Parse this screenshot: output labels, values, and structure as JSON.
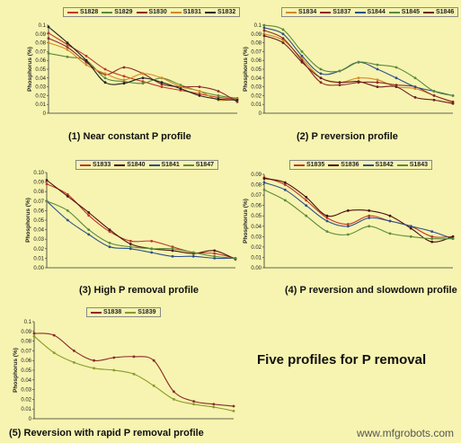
{
  "title": "Five profiles for P removal",
  "watermark": "www.mfgrobots.com",
  "chart_data": [
    {
      "type": "line",
      "title": "(1) Near constant P profile",
      "ylabel": "Phosphorus (%)",
      "ylim": [
        0,
        0.1
      ],
      "yticks": [
        "0",
        "0.01",
        "0.02",
        "0.03",
        "0.04",
        "0.05",
        "0.06",
        "0.07",
        "0.08",
        "0.09",
        "0.1"
      ],
      "series": [
        {
          "name": "S1828",
          "color": "#c0392b",
          "points": [
            [
              0,
              0.091
            ],
            [
              1,
              0.078
            ],
            [
              2,
              0.065
            ],
            [
              3,
              0.05
            ],
            [
              4,
              0.042
            ],
            [
              5,
              0.036
            ],
            [
              6,
              0.03
            ],
            [
              7,
              0.026
            ],
            [
              8,
              0.022
            ],
            [
              9,
              0.018
            ],
            [
              10,
              0.016
            ]
          ]
        },
        {
          "name": "S1829",
          "color": "#5d8a3a",
          "points": [
            [
              0,
              0.068
            ],
            [
              1,
              0.064
            ],
            [
              2,
              0.06
            ],
            [
              3,
              0.04
            ],
            [
              4,
              0.036
            ],
            [
              5,
              0.034
            ],
            [
              6,
              0.04
            ],
            [
              7,
              0.032
            ],
            [
              8,
              0.025
            ],
            [
              9,
              0.02
            ],
            [
              10,
              0.017
            ]
          ]
        },
        {
          "name": "S1830",
          "color": "#8b2a2a",
          "points": [
            [
              0,
              0.085
            ],
            [
              1,
              0.075
            ],
            [
              2,
              0.058
            ],
            [
              3,
              0.044
            ],
            [
              4,
              0.052
            ],
            [
              5,
              0.045
            ],
            [
              6,
              0.033
            ],
            [
              7,
              0.03
            ],
            [
              8,
              0.03
            ],
            [
              9,
              0.025
            ],
            [
              10,
              0.013
            ]
          ]
        },
        {
          "name": "S1831",
          "color": "#d4882a",
          "points": [
            [
              0,
              0.08
            ],
            [
              1,
              0.072
            ],
            [
              2,
              0.055
            ],
            [
              3,
              0.045
            ],
            [
              4,
              0.038
            ],
            [
              5,
              0.045
            ],
            [
              6,
              0.04
            ],
            [
              7,
              0.03
            ],
            [
              8,
              0.025
            ],
            [
              9,
              0.015
            ],
            [
              10,
              0.016
            ]
          ]
        },
        {
          "name": "S1832",
          "color": "#222222",
          "points": [
            [
              0,
              0.098
            ],
            [
              1,
              0.08
            ],
            [
              2,
              0.06
            ],
            [
              3,
              0.035
            ],
            [
              4,
              0.034
            ],
            [
              5,
              0.04
            ],
            [
              6,
              0.035
            ],
            [
              7,
              0.028
            ],
            [
              8,
              0.02
            ],
            [
              9,
              0.016
            ],
            [
              10,
              0.015
            ]
          ]
        }
      ]
    },
    {
      "type": "line",
      "title": "(2) P reversion profile",
      "ylabel": "Phosphorus (%)",
      "ylim": [
        0,
        0.1
      ],
      "yticks": [
        "0",
        "0.01",
        "0.02",
        "0.03",
        "0.04",
        "0.05",
        "0.06",
        "0.07",
        "0.08",
        "0.09",
        "0.1"
      ],
      "series": [
        {
          "name": "S1834",
          "color": "#d4882a",
          "points": [
            [
              0,
              0.09
            ],
            [
              1,
              0.083
            ],
            [
              2,
              0.062
            ],
            [
              3,
              0.04
            ],
            [
              4,
              0.035
            ],
            [
              5,
              0.04
            ],
            [
              6,
              0.038
            ],
            [
              7,
              0.03
            ],
            [
              8,
              0.028
            ],
            [
              9,
              0.02
            ],
            [
              10,
              0.012
            ]
          ]
        },
        {
          "name": "S1837",
          "color": "#8b2a2a",
          "points": [
            [
              0,
              0.094
            ],
            [
              1,
              0.085
            ],
            [
              2,
              0.06
            ],
            [
              3,
              0.035
            ],
            [
              4,
              0.032
            ],
            [
              5,
              0.035
            ],
            [
              6,
              0.035
            ],
            [
              7,
              0.032
            ],
            [
              8,
              0.03
            ],
            [
              9,
              0.02
            ],
            [
              10,
              0.013
            ]
          ]
        },
        {
          "name": "S1844",
          "color": "#2d4f8a",
          "points": [
            [
              0,
              0.097
            ],
            [
              1,
              0.09
            ],
            [
              2,
              0.065
            ],
            [
              3,
              0.045
            ],
            [
              4,
              0.048
            ],
            [
              5,
              0.058
            ],
            [
              6,
              0.05
            ],
            [
              7,
              0.04
            ],
            [
              8,
              0.03
            ],
            [
              9,
              0.025
            ],
            [
              10,
              0.02
            ]
          ]
        },
        {
          "name": "S1845",
          "color": "#5d8a3a",
          "points": [
            [
              0,
              0.1
            ],
            [
              1,
              0.095
            ],
            [
              2,
              0.07
            ],
            [
              3,
              0.05
            ],
            [
              4,
              0.048
            ],
            [
              5,
              0.058
            ],
            [
              6,
              0.055
            ],
            [
              7,
              0.052
            ],
            [
              8,
              0.04
            ],
            [
              9,
              0.025
            ],
            [
              10,
              0.02
            ]
          ]
        },
        {
          "name": "S1846",
          "color": "#6a1f1f",
          "points": [
            [
              0,
              0.088
            ],
            [
              1,
              0.08
            ],
            [
              2,
              0.058
            ],
            [
              3,
              0.04
            ],
            [
              4,
              0.035
            ],
            [
              5,
              0.036
            ],
            [
              6,
              0.03
            ],
            [
              7,
              0.03
            ],
            [
              8,
              0.018
            ],
            [
              9,
              0.015
            ],
            [
              10,
              0.011
            ]
          ]
        }
      ]
    },
    {
      "type": "line",
      "title": "(3) High P removal profile",
      "ylabel": "Phosphorus (%)",
      "ylim": [
        0,
        0.1
      ],
      "yticks": [
        "0.00",
        "0.01",
        "0.02",
        "0.03",
        "0.04",
        "0.05",
        "0.06",
        "0.07",
        "0.08",
        "0.09",
        "0.10"
      ],
      "series": [
        {
          "name": "S1833",
          "color": "#c0392b",
          "points": [
            [
              0,
              0.088
            ],
            [
              1,
              0.077
            ],
            [
              2,
              0.055
            ],
            [
              3,
              0.038
            ],
            [
              4,
              0.028
            ],
            [
              5,
              0.028
            ],
            [
              6,
              0.022
            ],
            [
              7,
              0.016
            ],
            [
              8,
              0.015
            ],
            [
              9,
              0.01
            ]
          ]
        },
        {
          "name": "S1840",
          "color": "#4a1010",
          "points": [
            [
              0,
              0.092
            ],
            [
              1,
              0.075
            ],
            [
              2,
              0.058
            ],
            [
              3,
              0.04
            ],
            [
              4,
              0.025
            ],
            [
              5,
              0.02
            ],
            [
              6,
              0.018
            ],
            [
              7,
              0.015
            ],
            [
              8,
              0.018
            ],
            [
              9,
              0.009
            ]
          ]
        },
        {
          "name": "S1841",
          "color": "#2d4f8a",
          "points": [
            [
              0,
              0.07
            ],
            [
              1,
              0.05
            ],
            [
              2,
              0.035
            ],
            [
              3,
              0.022
            ],
            [
              4,
              0.02
            ],
            [
              5,
              0.016
            ],
            [
              6,
              0.012
            ],
            [
              7,
              0.012
            ],
            [
              8,
              0.01
            ],
            [
              9,
              0.01
            ]
          ]
        },
        {
          "name": "S1847",
          "color": "#5d8a3a",
          "points": [
            [
              0,
              0.07
            ],
            [
              1,
              0.06
            ],
            [
              2,
              0.04
            ],
            [
              3,
              0.026
            ],
            [
              4,
              0.022
            ],
            [
              5,
              0.02
            ],
            [
              6,
              0.02
            ],
            [
              7,
              0.016
            ],
            [
              8,
              0.012
            ],
            [
              9,
              0.01
            ]
          ]
        }
      ]
    },
    {
      "type": "line",
      "title": "(4) P reversion and slowdown profile",
      "ylabel": "Phosphorus (%)",
      "ylim": [
        0,
        0.09
      ],
      "yticks": [
        "0.00",
        "0.01",
        "0.02",
        "0.03",
        "0.04",
        "0.05",
        "0.06",
        "0.07",
        "0.08",
        "0.09"
      ],
      "series": [
        {
          "name": "S1835",
          "color": "#c0392b",
          "points": [
            [
              0,
              0.087
            ],
            [
              1,
              0.08
            ],
            [
              2,
              0.065
            ],
            [
              3,
              0.048
            ],
            [
              4,
              0.042
            ],
            [
              5,
              0.05
            ],
            [
              6,
              0.045
            ],
            [
              7,
              0.04
            ],
            [
              8,
              0.03
            ],
            [
              9,
              0.03
            ]
          ]
        },
        {
          "name": "S1836",
          "color": "#4a1010",
          "points": [
            [
              0,
              0.086
            ],
            [
              1,
              0.082
            ],
            [
              2,
              0.068
            ],
            [
              3,
              0.05
            ],
            [
              4,
              0.055
            ],
            [
              5,
              0.055
            ],
            [
              6,
              0.05
            ],
            [
              7,
              0.038
            ],
            [
              8,
              0.025
            ],
            [
              9,
              0.03
            ]
          ]
        },
        {
          "name": "S1842",
          "color": "#2d4f8a",
          "points": [
            [
              0,
              0.082
            ],
            [
              1,
              0.075
            ],
            [
              2,
              0.06
            ],
            [
              3,
              0.045
            ],
            [
              4,
              0.04
            ],
            [
              5,
              0.048
            ],
            [
              6,
              0.045
            ],
            [
              7,
              0.04
            ],
            [
              8,
              0.035
            ],
            [
              9,
              0.028
            ]
          ]
        },
        {
          "name": "S1843",
          "color": "#5d8a3a",
          "points": [
            [
              0,
              0.075
            ],
            [
              1,
              0.065
            ],
            [
              2,
              0.05
            ],
            [
              3,
              0.035
            ],
            [
              4,
              0.032
            ],
            [
              5,
              0.04
            ],
            [
              6,
              0.033
            ],
            [
              7,
              0.03
            ],
            [
              8,
              0.028
            ],
            [
              9,
              0.028
            ]
          ]
        }
      ]
    },
    {
      "type": "line",
      "title": "(5) Reversion with rapid P removal profile",
      "ylabel": "Phosphorus (%)",
      "ylim": [
        0,
        0.1
      ],
      "yticks": [
        "0",
        "0.01",
        "0.02",
        "0.03",
        "0.04",
        "0.05",
        "0.06",
        "0.07",
        "0.08",
        "0.09",
        "0.1"
      ],
      "series": [
        {
          "name": "S1838",
          "color": "#8b2a2a",
          "points": [
            [
              0,
              0.088
            ],
            [
              1,
              0.086
            ],
            [
              2,
              0.07
            ],
            [
              3,
              0.06
            ],
            [
              4,
              0.063
            ],
            [
              5,
              0.064
            ],
            [
              6,
              0.06
            ],
            [
              7,
              0.028
            ],
            [
              8,
              0.018
            ],
            [
              9,
              0.015
            ],
            [
              10,
              0.013
            ]
          ]
        },
        {
          "name": "S1839",
          "color": "#8a9a2a",
          "points": [
            [
              0,
              0.085
            ],
            [
              1,
              0.068
            ],
            [
              2,
              0.058
            ],
            [
              3,
              0.052
            ],
            [
              4,
              0.05
            ],
            [
              5,
              0.046
            ],
            [
              6,
              0.034
            ],
            [
              7,
              0.02
            ],
            [
              8,
              0.015
            ],
            [
              9,
              0.012
            ],
            [
              10,
              0.008
            ]
          ]
        }
      ]
    }
  ]
}
